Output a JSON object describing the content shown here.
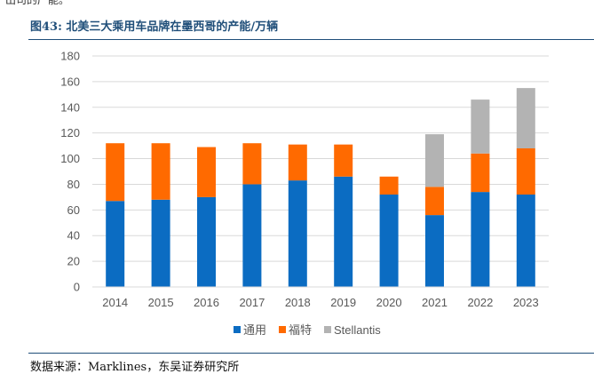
{
  "top_fragment": "出司的产能。",
  "figure_title": "图43:  北美三大乘用车品牌在墨西哥的产能/万辆",
  "source_note": "数据来源：Marklines，东吴证券研究所",
  "chart_data": {
    "type": "bar",
    "stacked": true,
    "title": "北美三大乘用车品牌在墨西哥的产能/万辆",
    "xlabel": "",
    "ylabel": "",
    "ylim": [
      0,
      180
    ],
    "yticks": [
      0,
      20,
      40,
      60,
      80,
      100,
      120,
      140,
      160,
      180
    ],
    "grid": true,
    "legend_position": "bottom",
    "categories": [
      "2014",
      "2015",
      "2016",
      "2017",
      "2018",
      "2019",
      "2020",
      "2021",
      "2022",
      "2023"
    ],
    "series": [
      {
        "name": "通用",
        "color": "#0b6cc2",
        "values": [
          67,
          68,
          70,
          80,
          83,
          86,
          72,
          56,
          74,
          72
        ]
      },
      {
        "name": "福特",
        "color": "#ff6a00",
        "values": [
          45,
          44,
          39,
          32,
          28,
          25,
          14,
          22,
          30,
          36
        ]
      },
      {
        "name": "Stellantis",
        "color": "#b3b3b3",
        "values": [
          0,
          0,
          0,
          0,
          0,
          0,
          0,
          41,
          42,
          47
        ]
      }
    ]
  }
}
